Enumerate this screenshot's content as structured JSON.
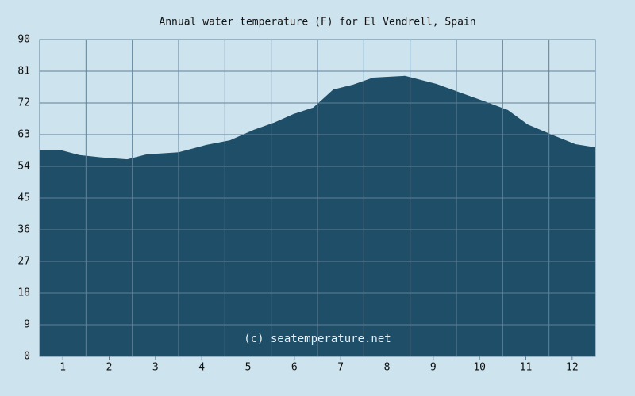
{
  "chart_data": {
    "type": "area",
    "title": "Annual water temperature (F) for El Vendrell, Spain",
    "watermark": "(c) seatemperature.net",
    "x": [
      0.5,
      0.93,
      1.36,
      1.87,
      2.39,
      2.81,
      3.5,
      4.1,
      4.61,
      5.13,
      5.56,
      5.99,
      6.41,
      6.84,
      7.27,
      7.7,
      8.39,
      9.07,
      9.59,
      10.1,
      10.61,
      11.04,
      11.56,
      12.07,
      12.5
    ],
    "series": [
      {
        "name": "Water temperature",
        "color": "#1f4e69",
        "values": [
          58.7,
          58.7,
          57.2,
          56.5,
          56.0,
          57.4,
          58.0,
          60.1,
          61.4,
          64.4,
          66.4,
          68.9,
          70.7,
          75.8,
          77.2,
          79.2,
          79.7,
          77.4,
          74.9,
          72.5,
          70.0,
          65.9,
          63.0,
          60.3,
          59.4
        ]
      }
    ],
    "xlim": [
      0.5,
      12.5
    ],
    "xticks": [
      1,
      2,
      3,
      4,
      5,
      6,
      7,
      8,
      9,
      10,
      11,
      12
    ],
    "ylim": [
      0,
      90
    ],
    "yticks": [
      0,
      9,
      18,
      27,
      36,
      45,
      54,
      63,
      72,
      81,
      90
    ],
    "grid": true
  }
}
